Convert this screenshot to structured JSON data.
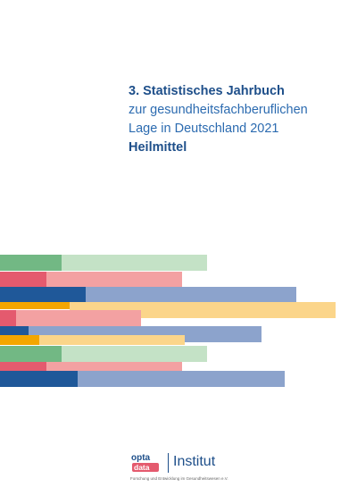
{
  "cover": {
    "title_line1": "3. Statistisches Jahrbuch",
    "title_line2": "zur gesundheitsfachberuflichen",
    "title_line3": "Lage in Deutschland 2021",
    "title_line4": "Heilmittel"
  },
  "logo": {
    "brand_top": "opta",
    "brand_bottom": "data",
    "name": "Institut",
    "tagline": "Forschung und Entwicklung im Gesundheitswesen e.V."
  },
  "colors": {
    "green_dark": "#72b884",
    "green_light": "#c4e2c6",
    "red_dark": "#e45a6e",
    "red_light": "#f3a1a2",
    "blue_dark": "#1f5899",
    "blue_light": "#8ca3cc",
    "orange_dark": "#f3a600",
    "orange_light": "#fbd58a",
    "title_blue": "#1e4f8a"
  }
}
